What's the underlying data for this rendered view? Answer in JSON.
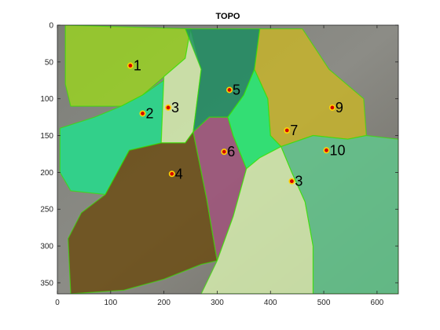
{
  "figure": {
    "title": "TOPO",
    "colors": {
      "axis": "#262626",
      "background_photo": "#6f706c",
      "marker_fill": "#d40000",
      "marker_edge": "#ffd200",
      "edge_green": "#39e000"
    }
  },
  "chart_data": {
    "type": "scatter",
    "title": "TOPO",
    "xlabel": "",
    "ylabel": "",
    "xlim": [
      0,
      640
    ],
    "ylim": [
      0,
      365
    ],
    "y_reversed": true,
    "xticks": [
      0,
      100,
      200,
      300,
      400,
      500,
      600
    ],
    "yticks": [
      0,
      50,
      100,
      150,
      200,
      250,
      300,
      350
    ],
    "grid": false,
    "legend": "none",
    "points": [
      {
        "label": "1",
        "x": 137,
        "y": 55
      },
      {
        "label": "2",
        "x": 160,
        "y": 120
      },
      {
        "label": "3",
        "x": 208,
        "y": 112
      },
      {
        "label": "4",
        "x": 215,
        "y": 202
      },
      {
        "label": "5",
        "x": 323,
        "y": 88
      },
      {
        "label": "6",
        "x": 313,
        "y": 172
      },
      {
        "label": "7",
        "x": 431,
        "y": 143
      },
      {
        "label": "3",
        "x": 440,
        "y": 212
      },
      {
        "label": "9",
        "x": 516,
        "y": 112
      },
      {
        "label": "10",
        "x": 505,
        "y": 170
      }
    ],
    "regions": [
      {
        "label": "1",
        "color": "#9ad420",
        "polygon": [
          [
            15,
            0
          ],
          [
            250,
            5
          ],
          [
            240,
            45
          ],
          [
            200,
            70
          ],
          [
            160,
            95
          ],
          [
            120,
            110
          ],
          [
            95,
            110
          ],
          [
            25,
            110
          ],
          [
            15,
            80
          ]
        ]
      },
      {
        "label": "2",
        "color": "#20e08c",
        "polygon": [
          [
            5,
            140
          ],
          [
            70,
            125
          ],
          [
            120,
            110
          ],
          [
            160,
            95
          ],
          [
            200,
            75
          ],
          [
            195,
            160
          ],
          [
            135,
            170
          ],
          [
            90,
            230
          ],
          [
            25,
            225
          ],
          [
            5,
            200
          ]
        ]
      },
      {
        "label": "3",
        "color": "#d8f0b0",
        "polygon": [
          [
            200,
            70
          ],
          [
            240,
            45
          ],
          [
            250,
            5
          ],
          [
            270,
            60
          ],
          [
            255,
            145
          ],
          [
            240,
            160
          ],
          [
            195,
            160
          ]
        ]
      },
      {
        "label": "4",
        "color": "#6a4a10",
        "polygon": [
          [
            90,
            230
          ],
          [
            135,
            170
          ],
          [
            195,
            160
          ],
          [
            240,
            160
          ],
          [
            255,
            145
          ],
          [
            280,
            235
          ],
          [
            300,
            320
          ],
          [
            270,
            325
          ],
          [
            200,
            345
          ],
          [
            125,
            360
          ],
          [
            25,
            365
          ],
          [
            20,
            290
          ],
          [
            45,
            255
          ]
        ]
      },
      {
        "label": "5",
        "color": "#1a8c60",
        "polygon": [
          [
            240,
            5
          ],
          [
            380,
            5
          ],
          [
            370,
            60
          ],
          [
            350,
            95
          ],
          [
            320,
            125
          ],
          [
            285,
            125
          ],
          [
            255,
            145
          ],
          [
            270,
            60
          ]
        ]
      },
      {
        "label": "6",
        "color": "#a0507a",
        "polygon": [
          [
            255,
            145
          ],
          [
            285,
            125
          ],
          [
            320,
            125
          ],
          [
            330,
            150
          ],
          [
            355,
            195
          ],
          [
            330,
            260
          ],
          [
            300,
            320
          ],
          [
            280,
            235
          ]
        ]
      },
      {
        "label": "7",
        "color": "#20f070",
        "polygon": [
          [
            320,
            125
          ],
          [
            350,
            95
          ],
          [
            370,
            60
          ],
          [
            395,
            100
          ],
          [
            400,
            150
          ],
          [
            420,
            165
          ],
          [
            380,
            180
          ],
          [
            355,
            195
          ],
          [
            330,
            150
          ]
        ]
      },
      {
        "label": "3",
        "color": "#d8f0b0",
        "polygon": [
          [
            355,
            195
          ],
          [
            380,
            180
          ],
          [
            420,
            165
          ],
          [
            440,
            200
          ],
          [
            465,
            240
          ],
          [
            480,
            300
          ],
          [
            480,
            365
          ],
          [
            270,
            365
          ],
          [
            300,
            320
          ],
          [
            330,
            260
          ]
        ]
      },
      {
        "label": "9",
        "color": "#c8b428",
        "polygon": [
          [
            380,
            5
          ],
          [
            460,
            5
          ],
          [
            510,
            60
          ],
          [
            575,
            100
          ],
          [
            580,
            150
          ],
          [
            545,
            155
          ],
          [
            480,
            150
          ],
          [
            420,
            165
          ],
          [
            400,
            150
          ],
          [
            395,
            100
          ],
          [
            370,
            60
          ]
        ]
      },
      {
        "label": "10",
        "color": "#60c88c",
        "polygon": [
          [
            420,
            165
          ],
          [
            480,
            150
          ],
          [
            545,
            155
          ],
          [
            580,
            150
          ],
          [
            640,
            155
          ],
          [
            640,
            365
          ],
          [
            480,
            365
          ],
          [
            480,
            300
          ],
          [
            465,
            240
          ],
          [
            440,
            200
          ]
        ]
      }
    ]
  }
}
